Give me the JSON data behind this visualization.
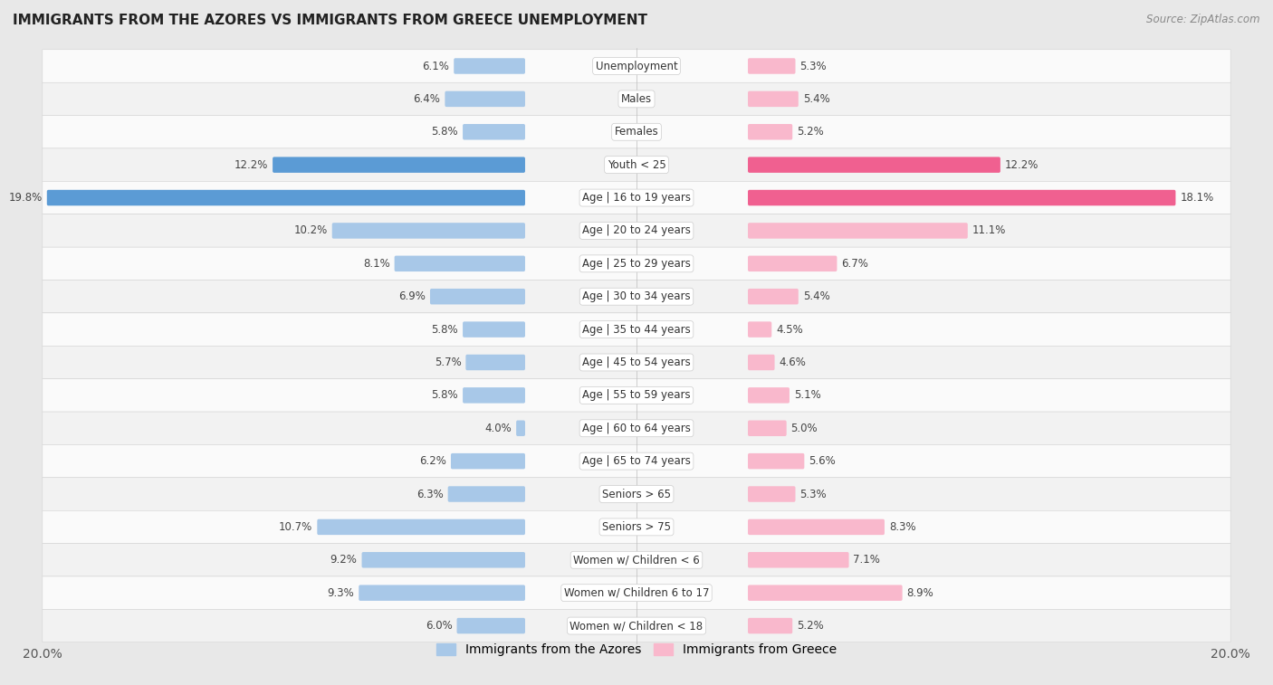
{
  "title": "IMMIGRANTS FROM THE AZORES VS IMMIGRANTS FROM GREECE UNEMPLOYMENT",
  "source": "Source: ZipAtlas.com",
  "categories": [
    "Unemployment",
    "Males",
    "Females",
    "Youth < 25",
    "Age | 16 to 19 years",
    "Age | 20 to 24 years",
    "Age | 25 to 29 years",
    "Age | 30 to 34 years",
    "Age | 35 to 44 years",
    "Age | 45 to 54 years",
    "Age | 55 to 59 years",
    "Age | 60 to 64 years",
    "Age | 65 to 74 years",
    "Seniors > 65",
    "Seniors > 75",
    "Women w/ Children < 6",
    "Women w/ Children 6 to 17",
    "Women w/ Children < 18"
  ],
  "azores_values": [
    6.1,
    6.4,
    5.8,
    12.2,
    19.8,
    10.2,
    8.1,
    6.9,
    5.8,
    5.7,
    5.8,
    4.0,
    6.2,
    6.3,
    10.7,
    9.2,
    9.3,
    6.0
  ],
  "greece_values": [
    5.3,
    5.4,
    5.2,
    12.2,
    18.1,
    11.1,
    6.7,
    5.4,
    4.5,
    4.6,
    5.1,
    5.0,
    5.6,
    5.3,
    8.3,
    7.1,
    8.9,
    5.2
  ],
  "azores_color_normal": "#a8c8e8",
  "azores_color_high": "#5b9bd5",
  "greece_color_normal": "#f9b8cc",
  "greece_color_high": "#f06090",
  "bg_color": "#e8e8e8",
  "row_even": "#f2f2f2",
  "row_odd": "#fafafa",
  "max_value": 20.0,
  "legend_azores": "Immigrants from the Azores",
  "legend_greece": "Immigrants from Greece",
  "bar_height": 0.38,
  "label_fontsize": 8.5,
  "value_fontsize": 8.5
}
